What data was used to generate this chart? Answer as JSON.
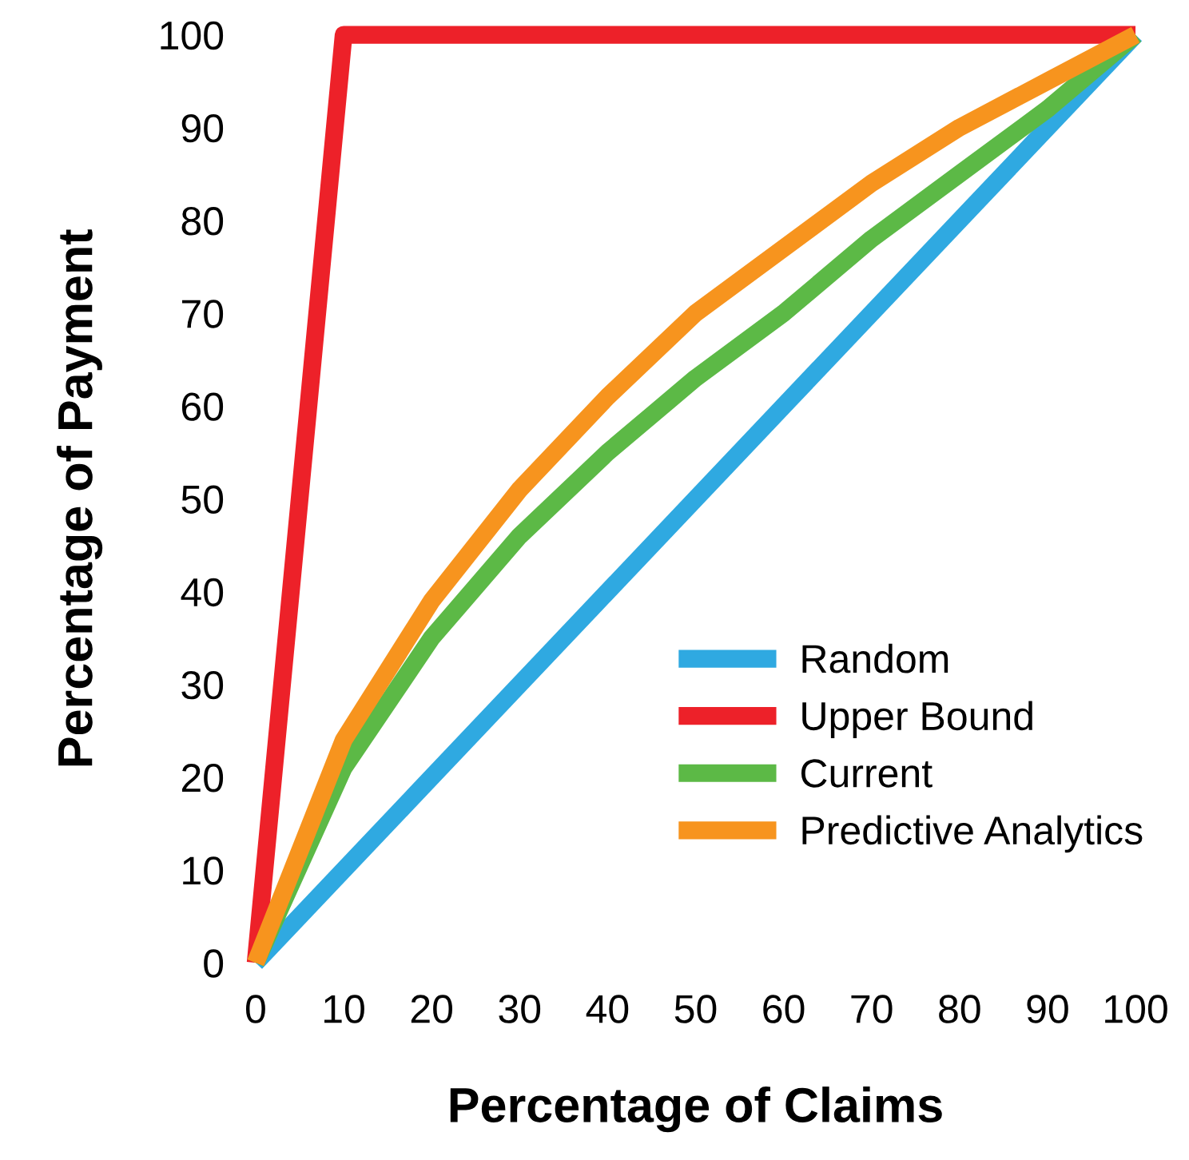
{
  "chart_data": {
    "type": "line",
    "xlabel": "Percentage of Claims",
    "ylabel": "Percentage of Payment",
    "xlim": [
      0,
      100
    ],
    "ylim": [
      0,
      100
    ],
    "xticks": [
      0,
      10,
      20,
      30,
      40,
      50,
      60,
      70,
      80,
      90,
      100
    ],
    "yticks": [
      0,
      10,
      20,
      30,
      40,
      50,
      60,
      70,
      80,
      90,
      100
    ],
    "grid": false,
    "legend": "bottom right",
    "marker": "none",
    "line_style": "solid",
    "series": [
      {
        "name": "Random",
        "color": "#2fa9e1",
        "x": [
          0,
          100
        ],
        "values": [
          0,
          100
        ]
      },
      {
        "name": "Upper Bound",
        "color": "#ed2129",
        "x": [
          0,
          10,
          100
        ],
        "values": [
          0,
          100,
          100
        ]
      },
      {
        "name": "Current",
        "color": "#5cb946",
        "x": [
          0,
          10,
          20,
          30,
          40,
          50,
          60,
          70,
          80,
          90,
          100
        ],
        "values": [
          0,
          21,
          35,
          46,
          55,
          63,
          70,
          78,
          85,
          92,
          100
        ]
      },
      {
        "name": "Predictive Analytics",
        "color": "#f7941e",
        "x": [
          0,
          10,
          20,
          30,
          40,
          50,
          60,
          70,
          80,
          90,
          100
        ],
        "values": [
          0,
          24,
          39,
          51,
          61,
          70,
          77,
          84,
          90,
          95,
          100
        ]
      }
    ]
  }
}
